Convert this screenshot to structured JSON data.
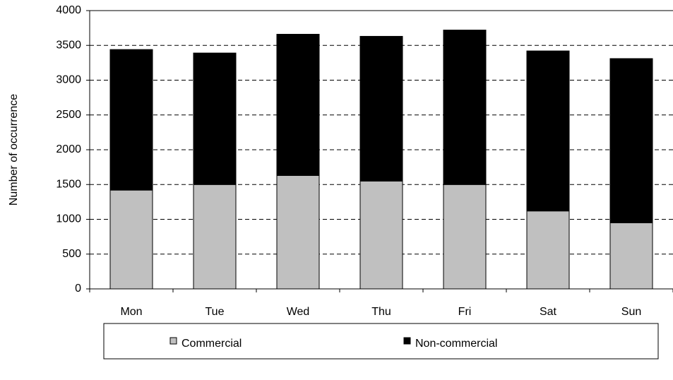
{
  "chart_data": {
    "type": "stacked-bar",
    "y_label": "Number of occurrence",
    "categories": [
      "Mon",
      "Tue",
      "Wed",
      "Thu",
      "Fri",
      "Sat",
      "Sun"
    ],
    "series": [
      {
        "name": "Commercial",
        "color": "#c0c0c0",
        "values": [
          1420,
          1500,
          1630,
          1550,
          1500,
          1120,
          950
        ]
      },
      {
        "name": "Non-commercial",
        "color": "#000000",
        "values": [
          2020,
          1890,
          2030,
          2080,
          2220,
          2300,
          2360
        ]
      }
    ],
    "ylim": [
      0,
      4000
    ],
    "yticks": [
      0,
      500,
      1000,
      1500,
      2000,
      2500,
      3000,
      3500,
      4000
    ],
    "grid": true
  }
}
